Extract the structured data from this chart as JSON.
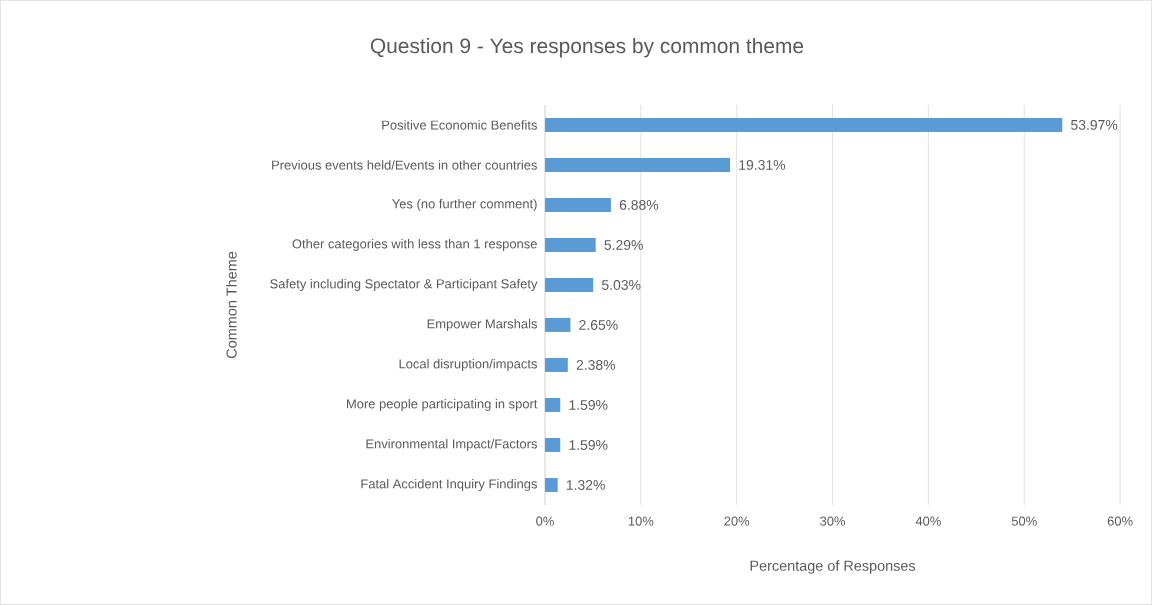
{
  "chart_data": {
    "type": "bar",
    "orientation": "horizontal",
    "title": "Question 9 - Yes responses by common theme",
    "xlabel": "Percentage of Responses",
    "ylabel": "Common Theme",
    "categories": [
      "Positive Economic Benefits",
      "Previous events held/Events in other countries",
      "Yes (no further comment)",
      "Other categories with less than 1 response",
      "Safety including Spectator & Participant Safety",
      "Empower Marshals",
      "Local disruption/impacts",
      "More people participating in sport",
      "Environmental Impact/Factors",
      "Fatal Accident Inquiry Findings"
    ],
    "values": [
      53.97,
      19.31,
      6.88,
      5.29,
      5.03,
      2.65,
      2.38,
      1.59,
      1.59,
      1.32
    ],
    "value_labels": [
      "53.97%",
      "19.31%",
      "6.88%",
      "5.29%",
      "5.03%",
      "2.65%",
      "2.38%",
      "1.59%",
      "1.59%",
      "1.32%"
    ],
    "color": "#5b9bd5",
    "xlim": [
      0,
      60
    ],
    "xticks": [
      {
        "value": 0,
        "label": "0%"
      },
      {
        "value": 10,
        "label": "10%"
      },
      {
        "value": 20,
        "label": "20%"
      },
      {
        "value": 30,
        "label": "30%"
      },
      {
        "value": 40,
        "label": "40%"
      },
      {
        "value": 50,
        "label": "50%"
      },
      {
        "value": 60,
        "label": "60%"
      }
    ],
    "grid": "x"
  }
}
